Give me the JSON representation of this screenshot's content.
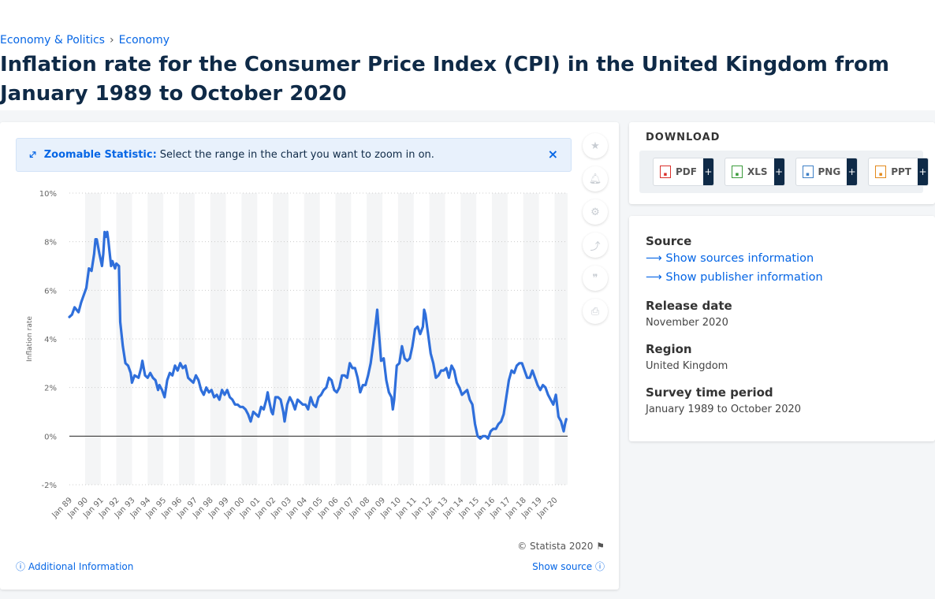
{
  "breadcrumb": {
    "item1": "Economy & Politics",
    "separator": "›",
    "item2": "Economy"
  },
  "title": "Inflation rate for the Consumer Price Index (CPI) in the United Kingdom from January 1989 to October 2020",
  "zoom_banner": {
    "strong": "Zoomable Statistic:",
    "text": "Select the range in the chart you want to zoom in on.",
    "close": "×"
  },
  "tools": [
    "star-icon",
    "bell-icon",
    "gear-icon",
    "share-icon",
    "quote-icon",
    "print-icon"
  ],
  "chart_footer": {
    "copyright": "© Statista 2020",
    "additional_info": "Additional Information",
    "show_source": "Show source"
  },
  "download": {
    "title": "DOWNLOAD",
    "buttons": [
      {
        "label": "PDF",
        "plus": "+",
        "icon": "pdf-file-icon",
        "color": "#d9302b"
      },
      {
        "label": "XLS",
        "plus": "+",
        "icon": "xls-file-icon",
        "color": "#3a9b3a"
      },
      {
        "label": "PNG",
        "plus": "+",
        "icon": "png-file-icon",
        "color": "#3d7fc6"
      },
      {
        "label": "PPT",
        "plus": "+",
        "icon": "ppt-file-icon",
        "color": "#e38a1c"
      }
    ]
  },
  "info": {
    "source_label": "Source",
    "show_sources": "Show sources information",
    "show_publisher": "Show publisher information",
    "release_label": "Release date",
    "release_value": "November 2020",
    "region_label": "Region",
    "region_value": "United Kingdom",
    "survey_label": "Survey time period",
    "survey_value": "January 1989 to October 2020"
  },
  "colors": {
    "accent": "#0666e5",
    "line": "#2f6fdb",
    "title": "#0f2a47"
  },
  "chart_data": {
    "type": "line",
    "title": "",
    "ylabel": "Inflation rate",
    "xlabel": "",
    "ylim": [
      -2,
      10
    ],
    "yticks": [
      "-2%",
      "0%",
      "2%",
      "4%",
      "6%",
      "8%",
      "10%"
    ],
    "ytick_values": [
      -2,
      0,
      2,
      4,
      6,
      8,
      10
    ],
    "xtick_labels": [
      "Jan 89",
      "Jan 90",
      "Jan 91",
      "Jan 92",
      "Jan 93",
      "Jan 94",
      "Jan 95",
      "Jan 96",
      "Jan 97",
      "Jan 98",
      "Jan 99",
      "Jan 00",
      "Jan 01",
      "Jan 02",
      "Jan 03",
      "Jan 04",
      "Jan 05",
      "Jan 06",
      "Jan 07",
      "Jan 08",
      "Jan 09",
      "Jan 10",
      "Jan 11",
      "Jan 12",
      "Jan 13",
      "Jan 14",
      "Jan 15",
      "Jan 16",
      "Jan 17",
      "Jan 18",
      "Jan 19",
      "Jan 20"
    ],
    "grid": true,
    "series": [
      {
        "name": "",
        "points": [
          [
            "1989-01",
            4.9
          ],
          [
            "1989-03",
            5.0
          ],
          [
            "1989-05",
            5.3
          ],
          [
            "1989-08",
            5.1
          ],
          [
            "1989-10",
            5.5
          ],
          [
            "1989-12",
            5.8
          ],
          [
            "1990-02",
            6.1
          ],
          [
            "1990-04",
            6.9
          ],
          [
            "1990-06",
            6.8
          ],
          [
            "1990-08",
            7.5
          ],
          [
            "1990-09",
            8.1
          ],
          [
            "1990-10",
            8.1
          ],
          [
            "1990-12",
            7.5
          ],
          [
            "1991-02",
            7.0
          ],
          [
            "1991-03",
            7.5
          ],
          [
            "1991-04",
            8.4
          ],
          [
            "1991-05",
            8.2
          ],
          [
            "1991-06",
            8.4
          ],
          [
            "1991-07",
            8.0
          ],
          [
            "1991-09",
            7.0
          ],
          [
            "1991-10",
            7.2
          ],
          [
            "1991-12",
            6.9
          ],
          [
            "1992-01",
            7.1
          ],
          [
            "1992-03",
            7.0
          ],
          [
            "1992-04",
            4.7
          ],
          [
            "1992-06",
            3.7
          ],
          [
            "1992-08",
            3.0
          ],
          [
            "1992-10",
            2.9
          ],
          [
            "1992-12",
            2.6
          ],
          [
            "1993-01",
            2.2
          ],
          [
            "1993-03",
            2.5
          ],
          [
            "1993-06",
            2.4
          ],
          [
            "1993-08",
            2.8
          ],
          [
            "1993-09",
            3.1
          ],
          [
            "1993-11",
            2.5
          ],
          [
            "1994-01",
            2.4
          ],
          [
            "1994-03",
            2.6
          ],
          [
            "1994-05",
            2.4
          ],
          [
            "1994-07",
            2.3
          ],
          [
            "1994-09",
            1.9
          ],
          [
            "1994-10",
            2.1
          ],
          [
            "1994-12",
            1.9
          ],
          [
            "1995-02",
            1.6
          ],
          [
            "1995-04",
            2.3
          ],
          [
            "1995-06",
            2.6
          ],
          [
            "1995-08",
            2.5
          ],
          [
            "1995-10",
            2.9
          ],
          [
            "1995-12",
            2.7
          ],
          [
            "1996-02",
            3.0
          ],
          [
            "1996-04",
            2.8
          ],
          [
            "1996-06",
            2.9
          ],
          [
            "1996-08",
            2.4
          ],
          [
            "1996-10",
            2.3
          ],
          [
            "1996-12",
            2.2
          ],
          [
            "1997-02",
            2.5
          ],
          [
            "1997-04",
            2.3
          ],
          [
            "1997-06",
            1.9
          ],
          [
            "1997-08",
            1.7
          ],
          [
            "1997-10",
            2.0
          ],
          [
            "1997-12",
            1.8
          ],
          [
            "1998-02",
            1.9
          ],
          [
            "1998-04",
            1.6
          ],
          [
            "1998-06",
            1.7
          ],
          [
            "1998-08",
            1.5
          ],
          [
            "1998-10",
            1.9
          ],
          [
            "1998-12",
            1.7
          ],
          [
            "1999-02",
            1.9
          ],
          [
            "1999-04",
            1.6
          ],
          [
            "1999-06",
            1.5
          ],
          [
            "1999-08",
            1.3
          ],
          [
            "1999-10",
            1.3
          ],
          [
            "1999-12",
            1.2
          ],
          [
            "2000-02",
            1.2
          ],
          [
            "2000-04",
            1.1
          ],
          [
            "2000-06",
            0.9
          ],
          [
            "2000-08",
            0.6
          ],
          [
            "2000-10",
            1.0
          ],
          [
            "2000-12",
            0.9
          ],
          [
            "2001-02",
            0.8
          ],
          [
            "2001-04",
            1.2
          ],
          [
            "2001-06",
            1.1
          ],
          [
            "2001-08",
            1.5
          ],
          [
            "2001-09",
            1.8
          ],
          [
            "2001-10",
            1.5
          ],
          [
            "2001-12",
            1.0
          ],
          [
            "2002-01",
            0.9
          ],
          [
            "2002-03",
            1.6
          ],
          [
            "2002-05",
            1.6
          ],
          [
            "2002-07",
            1.5
          ],
          [
            "2002-09",
            1.0
          ],
          [
            "2002-10",
            0.6
          ],
          [
            "2002-12",
            1.3
          ],
          [
            "2003-02",
            1.6
          ],
          [
            "2003-04",
            1.4
          ],
          [
            "2003-06",
            1.1
          ],
          [
            "2003-08",
            1.5
          ],
          [
            "2003-10",
            1.4
          ],
          [
            "2003-12",
            1.3
          ],
          [
            "2004-02",
            1.3
          ],
          [
            "2004-04",
            1.1
          ],
          [
            "2004-06",
            1.6
          ],
          [
            "2004-08",
            1.3
          ],
          [
            "2004-10",
            1.2
          ],
          [
            "2004-12",
            1.6
          ],
          [
            "2005-02",
            1.7
          ],
          [
            "2005-04",
            1.9
          ],
          [
            "2005-06",
            2.0
          ],
          [
            "2005-08",
            2.4
          ],
          [
            "2005-10",
            2.3
          ],
          [
            "2005-12",
            1.9
          ],
          [
            "2006-02",
            1.8
          ],
          [
            "2006-04",
            2.0
          ],
          [
            "2006-06",
            2.5
          ],
          [
            "2006-08",
            2.5
          ],
          [
            "2006-10",
            2.4
          ],
          [
            "2006-12",
            3.0
          ],
          [
            "2007-02",
            2.8
          ],
          [
            "2007-04",
            2.8
          ],
          [
            "2007-06",
            2.4
          ],
          [
            "2007-08",
            1.8
          ],
          [
            "2007-10",
            2.1
          ],
          [
            "2007-12",
            2.1
          ],
          [
            "2008-02",
            2.5
          ],
          [
            "2008-04",
            3.0
          ],
          [
            "2008-06",
            3.8
          ],
          [
            "2008-08",
            4.7
          ],
          [
            "2008-09",
            5.2
          ],
          [
            "2008-10",
            4.5
          ],
          [
            "2008-12",
            3.1
          ],
          [
            "2009-02",
            3.2
          ],
          [
            "2009-04",
            2.3
          ],
          [
            "2009-06",
            1.8
          ],
          [
            "2009-08",
            1.6
          ],
          [
            "2009-09",
            1.1
          ],
          [
            "2009-10",
            1.5
          ],
          [
            "2009-12",
            2.9
          ],
          [
            "2010-02",
            3.0
          ],
          [
            "2010-04",
            3.7
          ],
          [
            "2010-06",
            3.2
          ],
          [
            "2010-08",
            3.1
          ],
          [
            "2010-10",
            3.2
          ],
          [
            "2010-12",
            3.7
          ],
          [
            "2011-02",
            4.4
          ],
          [
            "2011-04",
            4.5
          ],
          [
            "2011-06",
            4.2
          ],
          [
            "2011-08",
            4.5
          ],
          [
            "2011-09",
            5.2
          ],
          [
            "2011-10",
            5.0
          ],
          [
            "2011-12",
            4.2
          ],
          [
            "2012-02",
            3.4
          ],
          [
            "2012-04",
            3.0
          ],
          [
            "2012-06",
            2.4
          ],
          [
            "2012-08",
            2.5
          ],
          [
            "2012-10",
            2.7
          ],
          [
            "2012-12",
            2.7
          ],
          [
            "2013-02",
            2.8
          ],
          [
            "2013-04",
            2.4
          ],
          [
            "2013-06",
            2.9
          ],
          [
            "2013-08",
            2.7
          ],
          [
            "2013-10",
            2.2
          ],
          [
            "2013-12",
            2.0
          ],
          [
            "2014-02",
            1.7
          ],
          [
            "2014-04",
            1.8
          ],
          [
            "2014-06",
            1.9
          ],
          [
            "2014-08",
            1.5
          ],
          [
            "2014-10",
            1.3
          ],
          [
            "2014-12",
            0.5
          ],
          [
            "2015-02",
            0.0
          ],
          [
            "2015-04",
            -0.1
          ],
          [
            "2015-06",
            0.0
          ],
          [
            "2015-08",
            0.0
          ],
          [
            "2015-10",
            -0.1
          ],
          [
            "2015-12",
            0.2
          ],
          [
            "2016-02",
            0.3
          ],
          [
            "2016-04",
            0.3
          ],
          [
            "2016-06",
            0.5
          ],
          [
            "2016-08",
            0.6
          ],
          [
            "2016-10",
            0.9
          ],
          [
            "2016-12",
            1.6
          ],
          [
            "2017-02",
            2.3
          ],
          [
            "2017-04",
            2.7
          ],
          [
            "2017-06",
            2.6
          ],
          [
            "2017-08",
            2.9
          ],
          [
            "2017-10",
            3.0
          ],
          [
            "2017-12",
            3.0
          ],
          [
            "2018-02",
            2.7
          ],
          [
            "2018-04",
            2.4
          ],
          [
            "2018-06",
            2.4
          ],
          [
            "2018-08",
            2.7
          ],
          [
            "2018-10",
            2.4
          ],
          [
            "2018-12",
            2.1
          ],
          [
            "2019-02",
            1.9
          ],
          [
            "2019-04",
            2.1
          ],
          [
            "2019-06",
            2.0
          ],
          [
            "2019-08",
            1.7
          ],
          [
            "2019-10",
            1.5
          ],
          [
            "2019-12",
            1.3
          ],
          [
            "2020-02",
            1.7
          ],
          [
            "2020-04",
            0.8
          ],
          [
            "2020-06",
            0.6
          ],
          [
            "2020-08",
            0.2
          ],
          [
            "2020-09",
            0.5
          ],
          [
            "2020-10",
            0.7
          ]
        ]
      }
    ]
  }
}
